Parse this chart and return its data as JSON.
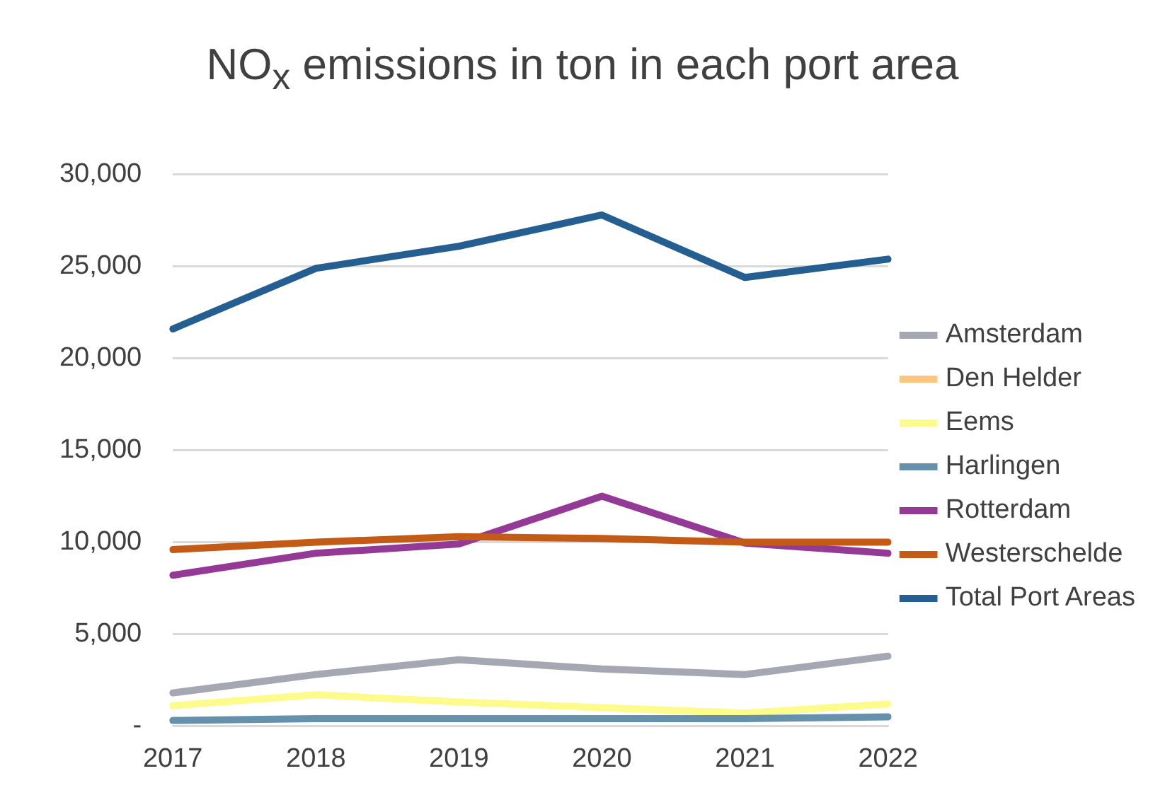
{
  "chart_data": {
    "type": "line",
    "title": "NO$_{x}$ emissions in ton in each port area",
    "categories": [
      "2017",
      "2018",
      "2019",
      "2020",
      "2021",
      "2022"
    ],
    "series": [
      {
        "name": "Amsterdam",
        "color": "#a5a8b3",
        "values": [
          1800,
          2800,
          3600,
          3100,
          2800,
          3800
        ]
      },
      {
        "name": "Den Helder",
        "color": "#ffc67f",
        "values": [
          null,
          null,
          null,
          null,
          null,
          null
        ]
      },
      {
        "name": "Eems",
        "color": "#fdfb8b",
        "values": [
          1100,
          1700,
          1300,
          1000,
          700,
          1200
        ]
      },
      {
        "name": "Harlingen",
        "color": "#6591ac",
        "values": [
          300,
          400,
          400,
          400,
          400,
          500
        ]
      },
      {
        "name": "Rotterdam",
        "color": "#943995",
        "values": [
          8200,
          9400,
          9900,
          12500,
          9950,
          9400
        ]
      },
      {
        "name": "Westerschelde",
        "color": "#c35b16",
        "values": [
          9600,
          10000,
          10300,
          10200,
          10000,
          10000
        ]
      },
      {
        "name": "Total Port Areas",
        "color": "#255e91",
        "values": [
          21600,
          24900,
          26100,
          27800,
          24400,
          25400
        ]
      }
    ],
    "ylim": [
      0,
      30000
    ],
    "yticks": [
      {
        "value": 0,
        "label": "-"
      },
      {
        "value": 5000,
        "label": "5,000"
      },
      {
        "value": 10000,
        "label": "10,000"
      },
      {
        "value": 15000,
        "label": "15,000"
      },
      {
        "value": 20000,
        "label": "20,000"
      },
      {
        "value": 25000,
        "label": "25,000"
      },
      {
        "value": 30000,
        "label": "30,000"
      }
    ],
    "grid": "y",
    "legend": "right",
    "marker": "none",
    "line_style": "solid"
  }
}
